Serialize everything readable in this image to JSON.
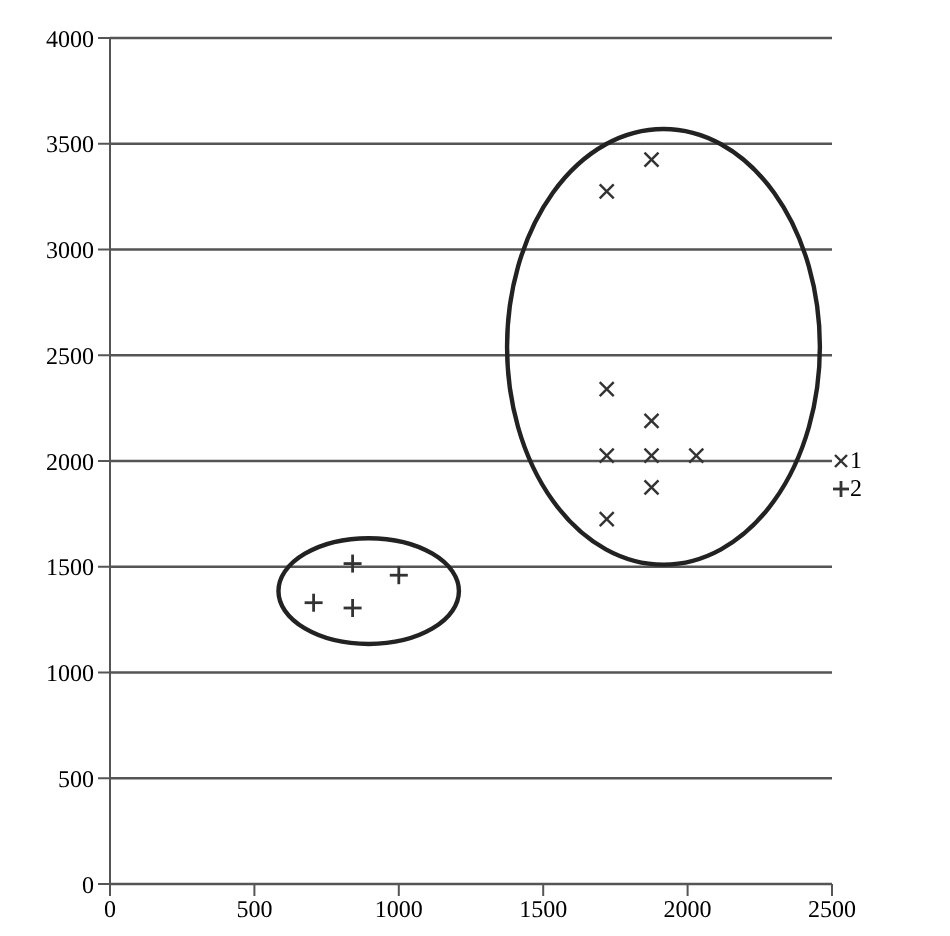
{
  "chart_data": {
    "type": "scatter",
    "series": [
      {
        "name": "1",
        "color": "#333333",
        "marker": "x",
        "x": [
          1720,
          1875,
          1720,
          1875,
          1720,
          1875,
          2030,
          1875,
          1720
        ],
        "values": [
          3275,
          3425,
          2340,
          2190,
          2025,
          2025,
          2025,
          1875,
          1725
        ]
      },
      {
        "name": "2",
        "color": "#333333",
        "marker": "cross",
        "x": [
          840,
          1000,
          705,
          840
        ],
        "values": [
          1515,
          1460,
          1330,
          1305
        ]
      }
    ],
    "xlim": [
      0,
      2500
    ],
    "xticks": [
      0,
      500,
      1000,
      1500,
      2000,
      2500
    ],
    "ylim": [
      0,
      4000
    ],
    "yticks": [
      0,
      500,
      1000,
      1500,
      2000,
      2500,
      3000,
      3500,
      4000
    ],
    "grid": "y",
    "legend": "right"
  }
}
